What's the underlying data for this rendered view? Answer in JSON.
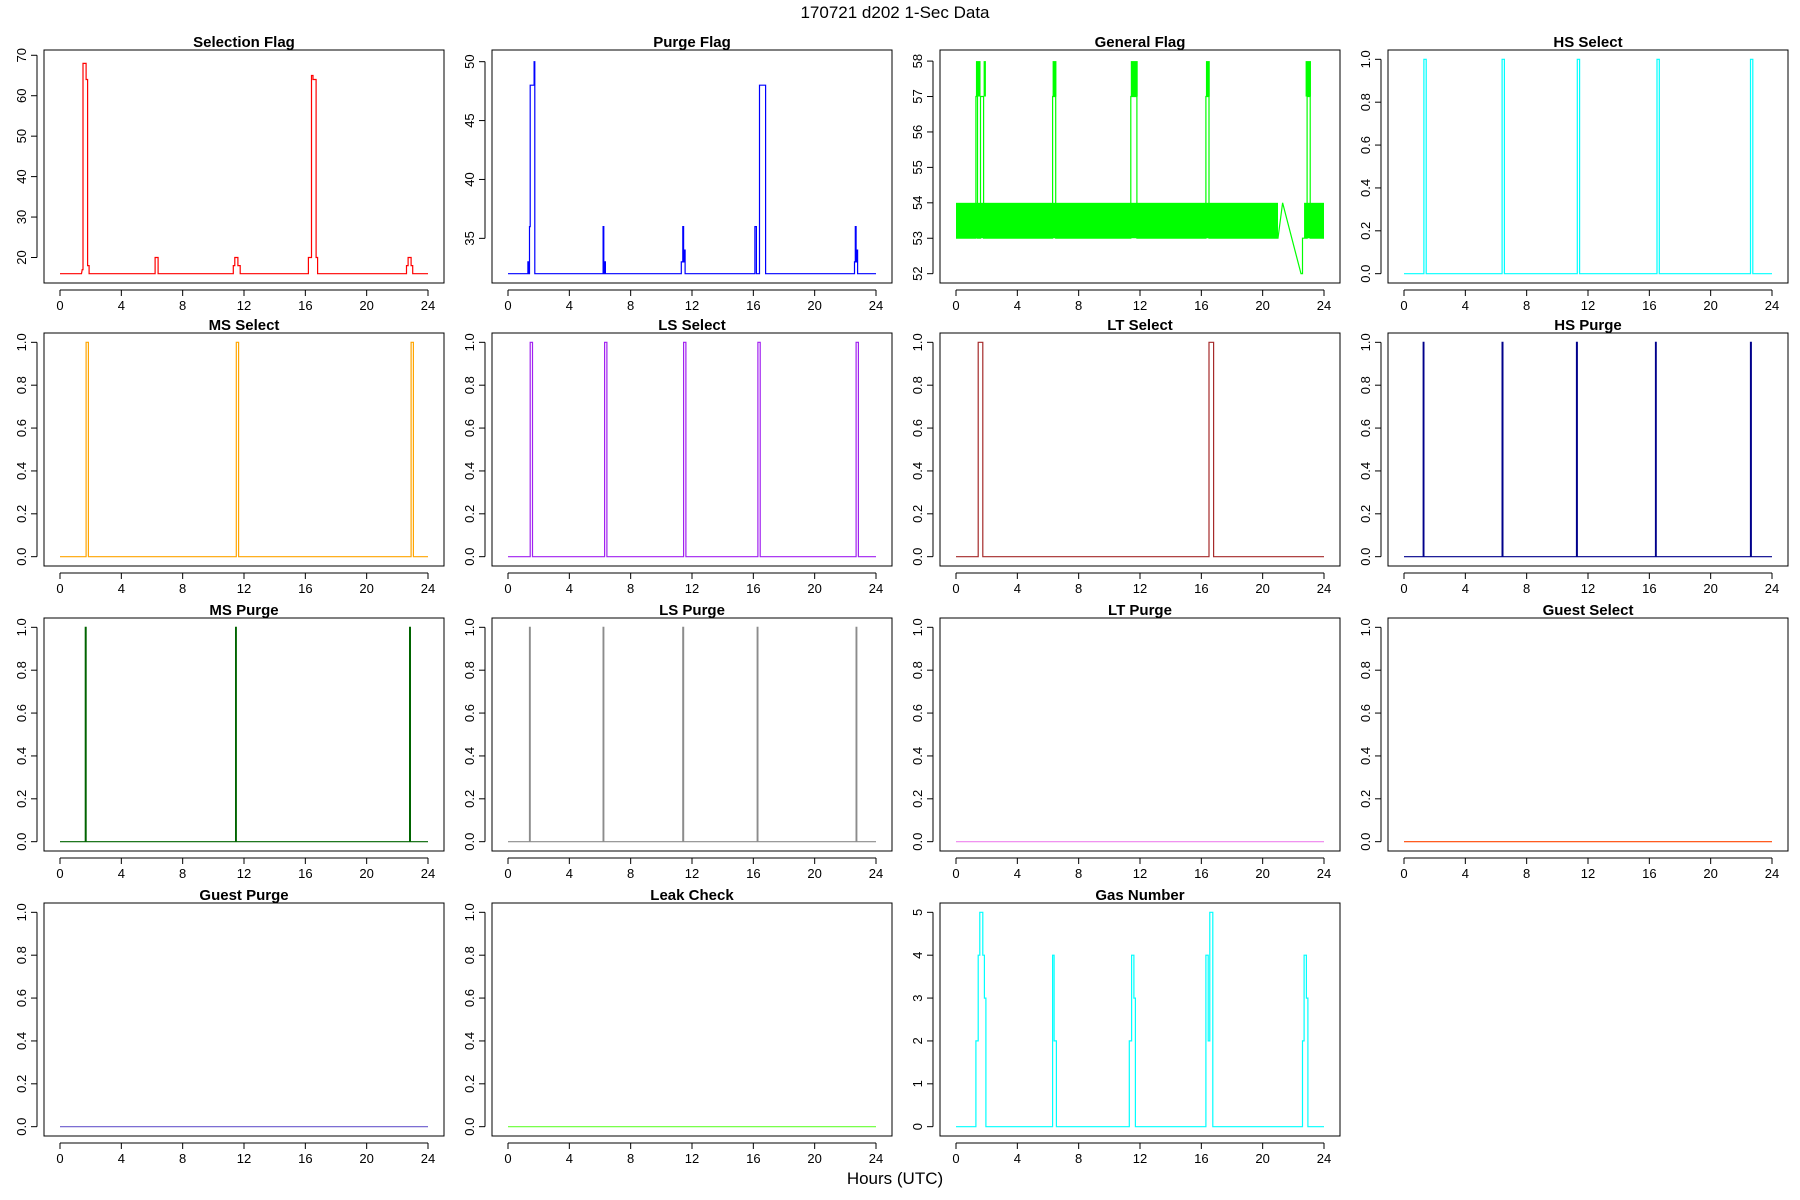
{
  "figure": {
    "title": "170721   d202   1-Sec Data",
    "xlabel": "Hours (UTC)"
  },
  "chart_data": [
    {
      "type": "line",
      "title": "Selection Flag",
      "color": "#ff0000",
      "xlim": [
        0,
        24
      ],
      "ylim": [
        16,
        69
      ],
      "xticks": [
        0,
        4,
        8,
        12,
        16,
        20,
        24
      ],
      "yticks": [
        20,
        30,
        40,
        50,
        60,
        70
      ],
      "x": [
        0,
        1.4,
        1.45,
        1.5,
        1.5,
        1.55,
        1.55,
        1.7,
        1.7,
        1.8,
        1.8,
        1.9,
        1.9,
        6.2,
        6.2,
        6.4,
        6.4,
        11.3,
        11.3,
        11.4,
        11.4,
        11.6,
        11.6,
        11.75,
        11.75,
        16.2,
        16.2,
        16.4,
        16.4,
        16.5,
        16.5,
        16.7,
        16.7,
        16.8,
        16.8,
        22.6,
        22.6,
        22.7,
        22.7,
        22.9,
        22.9,
        23.0,
        23.0,
        24
      ],
      "y": [
        16,
        16,
        17,
        17,
        68,
        68,
        68,
        68,
        64,
        64,
        18,
        18,
        16,
        16,
        20,
        20,
        16,
        16,
        18,
        18,
        20,
        20,
        18,
        18,
        16,
        16,
        20,
        20,
        65,
        65,
        64,
        64,
        20,
        20,
        16,
        16,
        18,
        18,
        20,
        20,
        18,
        18,
        16,
        16
      ]
    },
    {
      "type": "line",
      "title": "Purge Flag",
      "color": "#0000ff",
      "xlim": [
        0,
        24
      ],
      "ylim": [
        32,
        50.2
      ],
      "xticks": [
        0,
        4,
        8,
        12,
        16,
        20,
        24
      ],
      "yticks": [
        35,
        40,
        45,
        50
      ],
      "x": [
        0,
        1.3,
        1.3,
        1.35,
        1.35,
        1.4,
        1.4,
        1.45,
        1.45,
        1.55,
        1.55,
        1.7,
        1.7,
        1.75,
        1.75,
        1.8,
        1.8,
        6.2,
        6.2,
        6.25,
        6.25,
        6.3,
        6.3,
        6.35,
        6.35,
        11.3,
        11.3,
        11.4,
        11.4,
        11.45,
        11.45,
        11.5,
        11.5,
        11.55,
        11.55,
        16.1,
        16.1,
        16.2,
        16.2,
        16.4,
        16.4,
        16.8,
        16.8,
        22.6,
        22.6,
        22.65,
        22.65,
        22.7,
        22.7,
        22.75,
        22.75,
        22.8,
        22.8,
        24
      ],
      "y": [
        32,
        32,
        33,
        33,
        32,
        32,
        36,
        36,
        48,
        48,
        48,
        48,
        50,
        50,
        32,
        32,
        32,
        32,
        36,
        36,
        32,
        32,
        33,
        33,
        32,
        32,
        33,
        33,
        36,
        36,
        33,
        33,
        34,
        34,
        32,
        32,
        36,
        36,
        32,
        32,
        48,
        48,
        32,
        32,
        33,
        33,
        36,
        36,
        33,
        33,
        34,
        34,
        32,
        32
      ]
    },
    {
      "type": "line",
      "title": "General Flag",
      "color": "#00ff00",
      "xlim": [
        0,
        24
      ],
      "ylim": [
        52,
        58.05
      ],
      "xticks": [
        0,
        4,
        8,
        12,
        16,
        20,
        24
      ],
      "yticks": [
        52,
        53,
        54,
        55,
        56,
        57,
        58
      ],
      "x": [
        0,
        1.3,
        1.3,
        1.4,
        1.4,
        1.6,
        1.6,
        1.8,
        1.8,
        6.3,
        6.3,
        6.5,
        6.5,
        11.4,
        11.4,
        11.8,
        11.8,
        16.3,
        16.3,
        16.5,
        16.5,
        21.0,
        21.3,
        22.5,
        22.6,
        22.6,
        22.9,
        22.9,
        23.1,
        23.1,
        24
      ],
      "y": [
        53,
        53,
        57,
        57,
        53,
        53,
        57,
        57,
        53,
        53,
        57,
        57,
        53,
        53,
        57,
        57,
        53,
        53,
        57,
        57,
        53,
        53,
        54,
        52,
        52,
        53,
        53,
        57,
        57,
        53,
        53
      ],
      "bands": [
        {
          "x0": 0,
          "x1": 21.0,
          "y0": 53,
          "y1": 54
        },
        {
          "x0": 22.7,
          "x1": 24,
          "y0": 53,
          "y1": 54
        },
        {
          "x0": 1.3,
          "x1": 1.6,
          "y0": 57,
          "y1": 58
        },
        {
          "x0": 1.8,
          "x1": 1.95,
          "y0": 57,
          "y1": 58
        },
        {
          "x0": 6.3,
          "x1": 6.55,
          "y0": 57,
          "y1": 58
        },
        {
          "x0": 11.4,
          "x1": 11.85,
          "y0": 57,
          "y1": 58
        },
        {
          "x0": 16.3,
          "x1": 16.55,
          "y0": 57,
          "y1": 58
        },
        {
          "x0": 22.8,
          "x1": 23.15,
          "y0": 57,
          "y1": 58
        }
      ]
    },
    {
      "type": "line",
      "title": "HS Select",
      "color": "#00ffff",
      "xlim": [
        0,
        24
      ],
      "ylim": [
        0,
        1
      ],
      "xticks": [
        0,
        4,
        8,
        12,
        16,
        20,
        24
      ],
      "yticks": [
        0.0,
        0.2,
        0.4,
        0.6,
        0.8,
        1.0
      ],
      "x": [
        0,
        1.3,
        1.3,
        1.45,
        1.45,
        6.4,
        6.4,
        6.55,
        6.55,
        11.3,
        11.3,
        11.45,
        11.45,
        16.5,
        16.5,
        16.65,
        16.65,
        22.6,
        22.6,
        22.75,
        22.75,
        24
      ],
      "y": [
        0,
        0,
        1,
        1,
        0,
        0,
        1,
        1,
        0,
        0,
        1,
        1,
        0,
        0,
        1,
        1,
        0,
        0,
        1,
        1,
        0,
        0
      ]
    },
    {
      "type": "line",
      "title": "MS Select",
      "color": "#ffa500",
      "xlim": [
        0,
        24
      ],
      "ylim": [
        0,
        1
      ],
      "xticks": [
        0,
        4,
        8,
        12,
        16,
        20,
        24
      ],
      "yticks": [
        0.0,
        0.2,
        0.4,
        0.6,
        0.8,
        1.0
      ],
      "x": [
        0,
        1.7,
        1.7,
        1.85,
        1.85,
        11.5,
        11.5,
        11.65,
        11.65,
        22.9,
        22.9,
        23.05,
        23.05,
        24
      ],
      "y": [
        0,
        0,
        1,
        1,
        0,
        0,
        1,
        1,
        0,
        0,
        1,
        1,
        0,
        0
      ]
    },
    {
      "type": "line",
      "title": "LS Select",
      "color": "#a020f0",
      "xlim": [
        0,
        24
      ],
      "ylim": [
        0,
        1
      ],
      "xticks": [
        0,
        4,
        8,
        12,
        16,
        20,
        24
      ],
      "yticks": [
        0.0,
        0.2,
        0.4,
        0.6,
        0.8,
        1.0
      ],
      "x": [
        0,
        1.45,
        1.45,
        1.6,
        1.6,
        6.3,
        6.3,
        6.45,
        6.45,
        11.45,
        11.45,
        11.6,
        11.6,
        16.3,
        16.3,
        16.45,
        16.45,
        22.7,
        22.7,
        22.85,
        22.85,
        24
      ],
      "y": [
        0,
        0,
        1,
        1,
        0,
        0,
        1,
        1,
        0,
        0,
        1,
        1,
        0,
        0,
        1,
        1,
        0,
        0,
        1,
        1,
        0,
        0
      ]
    },
    {
      "type": "line",
      "title": "LT Select",
      "color": "#a52a2a",
      "xlim": [
        0,
        24
      ],
      "ylim": [
        0,
        1
      ],
      "xticks": [
        0,
        4,
        8,
        12,
        16,
        20,
        24
      ],
      "yticks": [
        0.0,
        0.2,
        0.4,
        0.6,
        0.8,
        1.0
      ],
      "x": [
        0,
        1.45,
        1.45,
        1.75,
        1.75,
        16.5,
        16.5,
        16.8,
        16.8,
        24
      ],
      "y": [
        0,
        0,
        1,
        1,
        0,
        0,
        1,
        1,
        0,
        0
      ]
    },
    {
      "type": "line",
      "title": "HS Purge",
      "color": "#00008b",
      "xlim": [
        0,
        24
      ],
      "ylim": [
        0,
        1
      ],
      "xticks": [
        0,
        4,
        8,
        12,
        16,
        20,
        24
      ],
      "yticks": [
        0.0,
        0.2,
        0.4,
        0.6,
        0.8,
        1.0
      ],
      "x": [
        0,
        1.25,
        1.25,
        1.3,
        1.3,
        6.4,
        6.4,
        6.45,
        6.45,
        11.25,
        11.25,
        11.3,
        11.3,
        16.4,
        16.4,
        16.45,
        16.45,
        22.6,
        22.6,
        22.65,
        22.65,
        24
      ],
      "y": [
        0,
        0,
        1,
        1,
        0,
        0,
        1,
        1,
        0,
        0,
        1,
        1,
        0,
        0,
        1,
        1,
        0,
        0,
        1,
        1,
        0,
        0
      ]
    },
    {
      "type": "line",
      "title": "MS Purge",
      "color": "#006400",
      "xlim": [
        0,
        24
      ],
      "ylim": [
        0,
        1
      ],
      "xticks": [
        0,
        4,
        8,
        12,
        16,
        20,
        24
      ],
      "yticks": [
        0.0,
        0.2,
        0.4,
        0.6,
        0.8,
        1.0
      ],
      "x": [
        0,
        1.65,
        1.65,
        1.7,
        1.7,
        11.45,
        11.45,
        11.5,
        11.5,
        22.8,
        22.8,
        22.85,
        22.85,
        24
      ],
      "y": [
        0,
        0,
        1,
        1,
        0,
        0,
        1,
        1,
        0,
        0,
        1,
        1,
        0,
        0
      ]
    },
    {
      "type": "line",
      "title": "LS Purge",
      "color": "#8c8c8c",
      "xlim": [
        0,
        24
      ],
      "ylim": [
        0,
        1
      ],
      "xticks": [
        0,
        4,
        8,
        12,
        16,
        20,
        24
      ],
      "yticks": [
        0.0,
        0.2,
        0.4,
        0.6,
        0.8,
        1.0
      ],
      "x": [
        0,
        1.4,
        1.4,
        1.45,
        1.45,
        6.2,
        6.2,
        6.25,
        6.25,
        11.4,
        11.4,
        11.45,
        11.45,
        16.25,
        16.25,
        16.3,
        16.3,
        22.7,
        22.7,
        22.75,
        22.75,
        24
      ],
      "y": [
        0,
        0,
        1,
        1,
        0,
        0,
        1,
        1,
        0,
        0,
        1,
        1,
        0,
        0,
        1,
        1,
        0,
        0,
        1,
        1,
        0,
        0
      ]
    },
    {
      "type": "line",
      "title": "LT Purge",
      "color": "#ee82ee",
      "xlim": [
        0,
        24
      ],
      "ylim": [
        0,
        1
      ],
      "xticks": [
        0,
        4,
        8,
        12,
        16,
        20,
        24
      ],
      "yticks": [
        0.0,
        0.2,
        0.4,
        0.6,
        0.8,
        1.0
      ],
      "x": [
        0,
        24
      ],
      "y": [
        0,
        0
      ]
    },
    {
      "type": "line",
      "title": "Guest Select",
      "color": "#ff4500",
      "xlim": [
        0,
        24
      ],
      "ylim": [
        0,
        1
      ],
      "xticks": [
        0,
        4,
        8,
        12,
        16,
        20,
        24
      ],
      "yticks": [
        0.0,
        0.2,
        0.4,
        0.6,
        0.8,
        1.0
      ],
      "x": [
        0,
        24
      ],
      "y": [
        0,
        0
      ]
    },
    {
      "type": "line",
      "title": "Guest Purge",
      "color": "#6a5acd",
      "xlim": [
        0,
        24
      ],
      "ylim": [
        0,
        1
      ],
      "xticks": [
        0,
        4,
        8,
        12,
        16,
        20,
        24
      ],
      "yticks": [
        0.0,
        0.2,
        0.4,
        0.6,
        0.8,
        1.0
      ],
      "x": [
        0,
        24
      ],
      "y": [
        0,
        0
      ]
    },
    {
      "type": "line",
      "title": "Leak Check",
      "color": "#66ff33",
      "xlim": [
        0,
        24
      ],
      "ylim": [
        0,
        1
      ],
      "xticks": [
        0,
        4,
        8,
        12,
        16,
        20,
        24
      ],
      "yticks": [
        0.0,
        0.2,
        0.4,
        0.6,
        0.8,
        1.0
      ],
      "x": [
        0,
        24
      ],
      "y": [
        0,
        0
      ]
    },
    {
      "type": "line",
      "title": "Gas Number",
      "color": "#00ffff",
      "xlim": [
        0,
        24
      ],
      "ylim": [
        0,
        5
      ],
      "xticks": [
        0,
        4,
        8,
        12,
        16,
        20,
        24
      ],
      "yticks": [
        0,
        1,
        2,
        3,
        4,
        5
      ],
      "x": [
        0,
        1.3,
        1.3,
        1.45,
        1.45,
        1.55,
        1.55,
        1.75,
        1.75,
        1.85,
        1.85,
        1.95,
        1.95,
        6.3,
        6.3,
        6.4,
        6.4,
        6.55,
        6.55,
        11.3,
        11.3,
        11.45,
        11.45,
        11.6,
        11.6,
        11.7,
        11.7,
        16.3,
        16.3,
        16.45,
        16.45,
        16.55,
        16.55,
        16.75,
        16.75,
        22.6,
        22.6,
        22.7,
        22.7,
        22.85,
        22.85,
        22.95,
        22.95,
        24
      ],
      "y": [
        0,
        0,
        2,
        2,
        4,
        4,
        5,
        5,
        4,
        4,
        3,
        3,
        0,
        0,
        4,
        4,
        2,
        2,
        0,
        0,
        2,
        2,
        4,
        4,
        3,
        3,
        0,
        0,
        4,
        4,
        2,
        2,
        5,
        5,
        0,
        0,
        2,
        2,
        4,
        4,
        3,
        3,
        0,
        0
      ]
    }
  ]
}
